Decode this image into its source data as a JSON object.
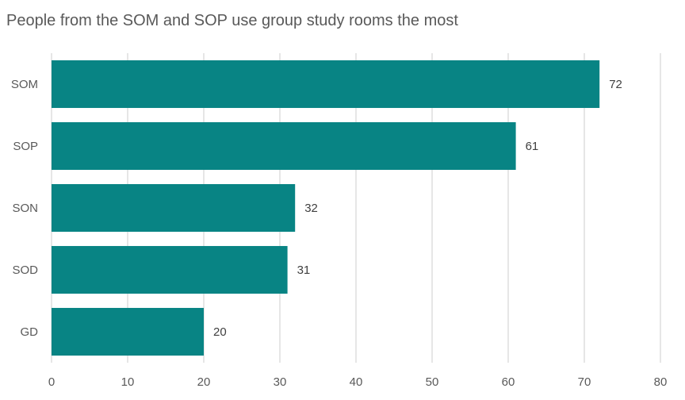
{
  "chart_data": {
    "type": "bar",
    "orientation": "horizontal",
    "title": "People from the SOM and SOP use group study rooms the most",
    "categories": [
      "SOM",
      "SOP",
      "SON",
      "SOD",
      "GD"
    ],
    "values": [
      72,
      61,
      32,
      31,
      20
    ],
    "xlim": [
      0,
      80
    ],
    "x_ticks": [
      0,
      10,
      20,
      30,
      40,
      50,
      60,
      70,
      80
    ],
    "xlabel": "",
    "ylabel": "",
    "grid": "vertical",
    "legend": "none",
    "data_labels": true,
    "bar_color": "#088484",
    "grid_color": "#d9d9d9"
  }
}
